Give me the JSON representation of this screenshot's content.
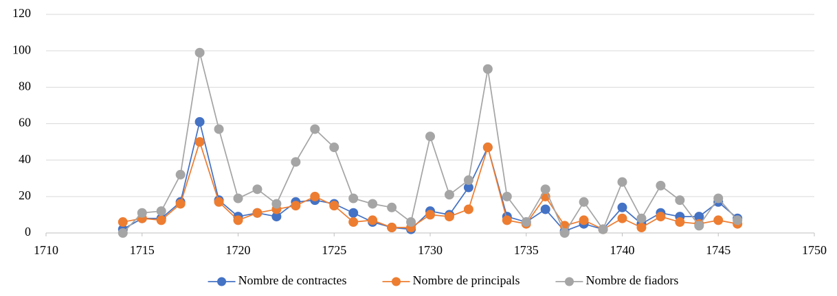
{
  "chart_data": {
    "type": "line",
    "x": [
      1714,
      1715,
      1716,
      1717,
      1718,
      1719,
      1720,
      1721,
      1722,
      1723,
      1724,
      1725,
      1726,
      1727,
      1728,
      1729,
      1730,
      1731,
      1732,
      1733,
      1734,
      1735,
      1736,
      1737,
      1738,
      1739,
      1740,
      1741,
      1742,
      1743,
      1744,
      1745,
      1746
    ],
    "series": [
      {
        "name": "Nombre de contractes",
        "color": "#4472c4",
        "values": [
          2,
          8,
          8,
          17,
          61,
          18,
          9,
          11,
          9,
          17,
          18,
          16,
          11,
          6,
          3,
          2,
          12,
          10,
          25,
          47,
          9,
          6,
          13,
          1,
          5,
          2,
          14,
          5,
          11,
          9,
          9,
          17,
          8
        ]
      },
      {
        "name": "Nombre de principals",
        "color": "#ed7d31",
        "values": [
          6,
          8,
          7,
          16,
          50,
          17,
          7,
          11,
          13,
          15,
          20,
          15,
          6,
          7,
          3,
          3,
          10,
          9,
          13,
          47,
          7,
          5,
          20,
          4,
          7,
          2,
          8,
          3,
          9,
          6,
          5,
          7,
          5
        ]
      },
      {
        "name": "Nombre de fiadors",
        "color": "#a5a5a5",
        "values": [
          0,
          11,
          12,
          32,
          99,
          57,
          19,
          24,
          16,
          39,
          57,
          47,
          19,
          16,
          14,
          6,
          53,
          21,
          29,
          90,
          20,
          6,
          24,
          0,
          17,
          2,
          28,
          8,
          26,
          18,
          4,
          19,
          7
        ]
      }
    ],
    "xlim": [
      1710,
      1750
    ],
    "xticks": [
      1710,
      1715,
      1720,
      1725,
      1730,
      1735,
      1740,
      1745,
      1750
    ],
    "ylim": [
      0,
      120
    ],
    "yticks": [
      0,
      20,
      40,
      60,
      80,
      100,
      120
    ],
    "grid": true,
    "legend": "bottom"
  }
}
